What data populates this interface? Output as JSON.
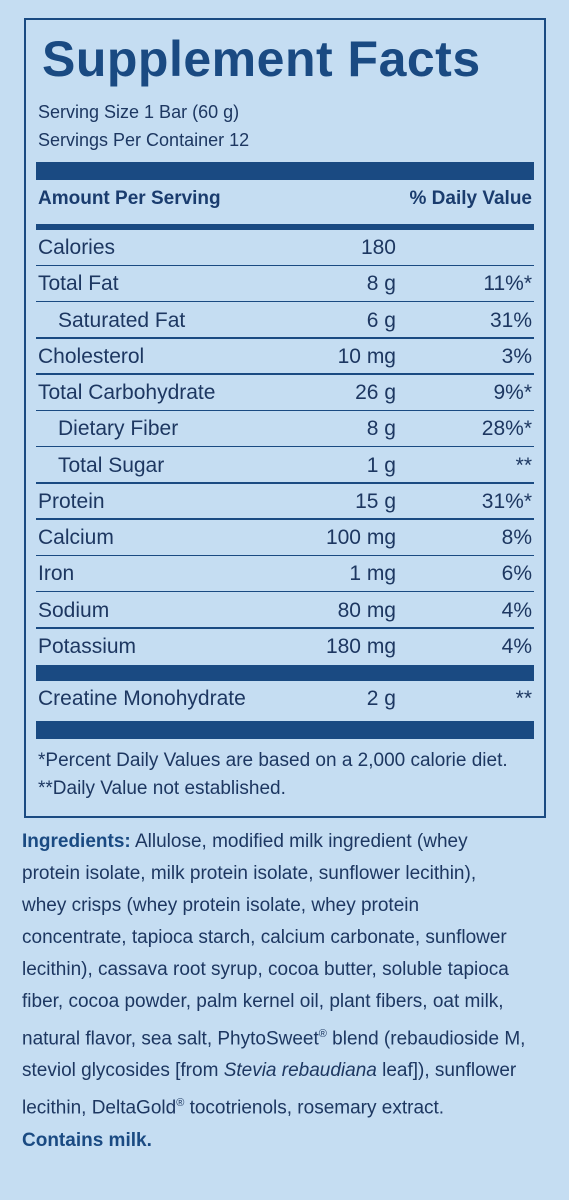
{
  "title": "Supplement Facts",
  "serving_size": "Serving Size 1 Bar (60 g)",
  "servings_per_container": "Servings Per Container 12",
  "header": {
    "amount": "Amount Per Serving",
    "dv": "% Daily Value"
  },
  "rows": [
    {
      "name": "Calories",
      "amount": "180",
      "dv": ""
    },
    {
      "name": "Total Fat",
      "amount": "8 g",
      "dv": "11%*"
    },
    {
      "name": "Saturated Fat",
      "amount": "6 g",
      "dv": "31%"
    },
    {
      "name": "Cholesterol",
      "amount": "10 mg",
      "dv": "3%"
    },
    {
      "name": "Total Carbohydrate",
      "amount": "26 g",
      "dv": "9%*"
    },
    {
      "name": "Dietary Fiber",
      "amount": "8 g",
      "dv": "28%*"
    },
    {
      "name": "Total Sugar",
      "amount": "1 g",
      "dv": "**"
    },
    {
      "name": "Protein",
      "amount": "15 g",
      "dv": "31%*"
    },
    {
      "name": "Calcium",
      "amount": "100 mg",
      "dv": "8%"
    },
    {
      "name": "Iron",
      "amount": "1 mg",
      "dv": "6%"
    },
    {
      "name": "Sodium",
      "amount": "80 mg",
      "dv": "4%"
    },
    {
      "name": "Potassium",
      "amount": "180 mg",
      "dv": "4%"
    }
  ],
  "extra_row": {
    "name": "Creatine Monohydrate",
    "amount": "2 g",
    "dv": "**"
  },
  "footnotes": [
    "*Percent Daily Values are based on a 2,000 calorie diet.",
    "**Daily Value not established."
  ],
  "ingredients": {
    "label": "Ingredients:",
    "lines": [
      "Allulose, modified milk ingredient (whey",
      "protein isolate, milk protein isolate, sunflower lecithin),",
      "whey crisps (whey protein isolate, whey protein",
      "concentrate, tapioca starch, calcium carbonate, sunflower",
      "lecithin), cassava root syrup, cocoa butter, soluble tapioca",
      "fiber, cocoa powder, palm kernel oil, plant fibers, oat milk,"
    ],
    "line7_a": "natural flavor, sea salt, PhytoSweet",
    "reg": "®",
    "line7_b": " blend (rebaudioside M,",
    "line8_a": "steviol glycosides [from ",
    "line8_italic": "Stevia rebaudiana",
    "line8_b": " leaf]), sunflower",
    "line9_a": "lecithin, DeltaGold",
    "line9_b": " tocotrienols, rosemary extract.",
    "contains": "Contains milk."
  }
}
